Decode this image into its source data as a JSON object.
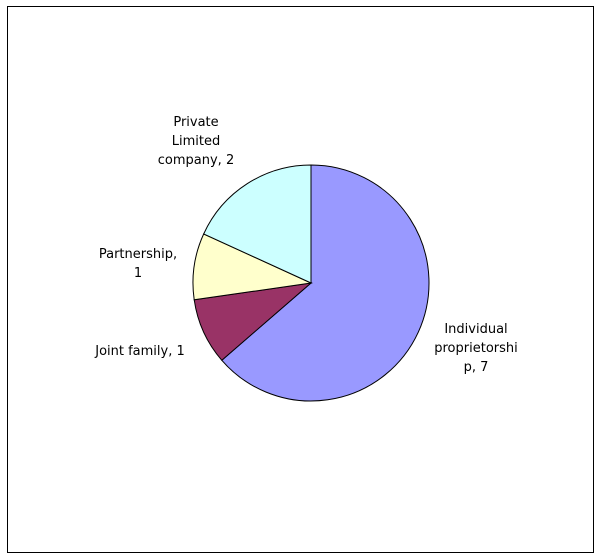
{
  "chart_data": {
    "type": "pie",
    "title": "",
    "slices": [
      {
        "label": "Individual proprietorship",
        "value": 7,
        "color": "#9999FF",
        "label_lines": [
          "Individual",
          "proprietorshi",
          "p, 7"
        ]
      },
      {
        "label": "Joint family",
        "value": 1,
        "color": "#993366",
        "label_lines": [
          "Joint family, 1"
        ]
      },
      {
        "label": "Partnership",
        "value": 1,
        "color": "#FFFFCC",
        "label_lines": [
          "Partnership,",
          "1"
        ]
      },
      {
        "label": "Private Limited company",
        "value": 2,
        "color": "#CCFFFF",
        "label_lines": [
          "Private",
          "Limited",
          "company, 2"
        ]
      }
    ],
    "start_angle_deg": 0,
    "direction": "clockwise",
    "legend": "none"
  }
}
